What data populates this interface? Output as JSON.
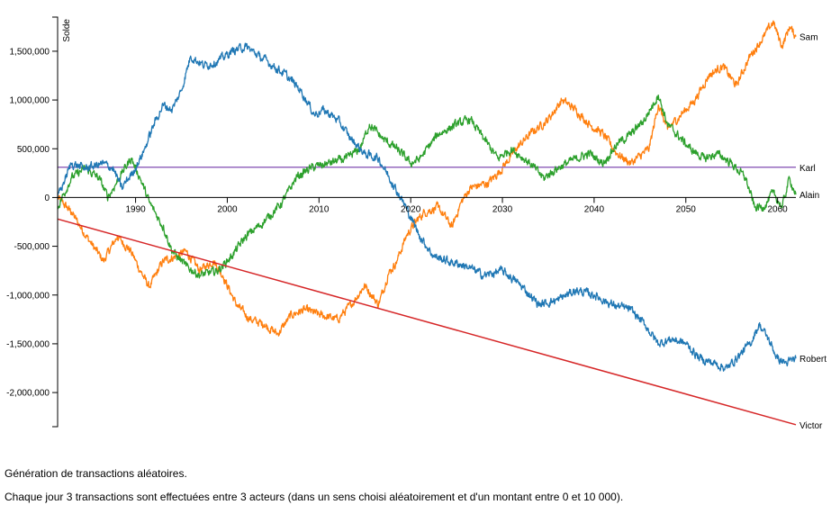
{
  "chart_data": {
    "type": "line",
    "ylabel": "Solde",
    "xlim": [
      1981.5,
      2062
    ],
    "ylim": [
      -2350000,
      1850000
    ],
    "x_ticks": [
      1990,
      2000,
      2010,
      2020,
      2030,
      2040,
      2050,
      2060
    ],
    "x_tick_labels": [
      "1990",
      "2000",
      "2010",
      "2020",
      "2030",
      "2040",
      "2050",
      "2060"
    ],
    "y_ticks": [
      1500000,
      1000000,
      500000,
      0,
      -500000,
      -1000000,
      -1500000,
      -2000000
    ],
    "y_tick_labels": [
      "1,500,000",
      "1,000,000",
      "500,000",
      "0",
      "-500,000",
      "-1,000,000",
      "-1,500,000",
      "-2,000,000"
    ],
    "grid": false,
    "legend": "none (series labelled at line ends)",
    "series": [
      {
        "name": "Sam",
        "color": "#ff7f0e",
        "noise": 70000,
        "points": [
          [
            1981.5,
            0
          ],
          [
            1983,
            -150000
          ],
          [
            1985,
            -450000
          ],
          [
            1986.5,
            -650000
          ],
          [
            1988,
            -400000
          ],
          [
            1989.5,
            -550000
          ],
          [
            1990.5,
            -750000
          ],
          [
            1991.5,
            -920000
          ],
          [
            1993,
            -650000
          ],
          [
            1994.5,
            -600000
          ],
          [
            1995.5,
            -550000
          ],
          [
            1997,
            -750000
          ],
          [
            1998.5,
            -650000
          ],
          [
            1999.5,
            -800000
          ],
          [
            2001,
            -1100000
          ],
          [
            2002.5,
            -1250000
          ],
          [
            2004,
            -1300000
          ],
          [
            2005.5,
            -1400000
          ],
          [
            2007,
            -1200000
          ],
          [
            2008.5,
            -1150000
          ],
          [
            2010,
            -1200000
          ],
          [
            2012,
            -1250000
          ],
          [
            2013.5,
            -1100000
          ],
          [
            2015,
            -900000
          ],
          [
            2016.5,
            -1100000
          ],
          [
            2017.5,
            -800000
          ],
          [
            2018.5,
            -650000
          ],
          [
            2019.5,
            -400000
          ],
          [
            2020.5,
            -250000
          ],
          [
            2021.5,
            -150000
          ],
          [
            2023,
            -100000
          ],
          [
            2024.5,
            -300000
          ],
          [
            2025.5,
            -50000
          ],
          [
            2026.5,
            100000
          ],
          [
            2028.5,
            150000
          ],
          [
            2030,
            300000
          ],
          [
            2031.5,
            500000
          ],
          [
            2033,
            650000
          ],
          [
            2035,
            800000
          ],
          [
            2036.5,
            1000000
          ],
          [
            2038,
            900000
          ],
          [
            2039.5,
            750000
          ],
          [
            2041,
            650000
          ],
          [
            2042.5,
            450000
          ],
          [
            2044,
            350000
          ],
          [
            2046,
            500000
          ],
          [
            2047,
            950000
          ],
          [
            2048,
            700000
          ],
          [
            2049.5,
            850000
          ],
          [
            2051,
            1000000
          ],
          [
            2052.5,
            1250000
          ],
          [
            2054,
            1350000
          ],
          [
            2055.5,
            1150000
          ],
          [
            2057,
            1450000
          ],
          [
            2058.5,
            1650000
          ],
          [
            2059.5,
            1800000
          ],
          [
            2060.5,
            1550000
          ],
          [
            2061.3,
            1750000
          ],
          [
            2062,
            1650000
          ]
        ]
      },
      {
        "name": "Karl",
        "color": "#9467bd",
        "noise": 0,
        "points": [
          [
            1981.5,
            310000
          ],
          [
            2062,
            310000
          ]
        ]
      },
      {
        "name": "Alain",
        "color": "#2ca02c",
        "noise": 70000,
        "points": [
          [
            1981.5,
            -100000
          ],
          [
            1983,
            200000
          ],
          [
            1984.5,
            300000
          ],
          [
            1986,
            200000
          ],
          [
            1987,
            0
          ],
          [
            1988.5,
            250000
          ],
          [
            1989.5,
            400000
          ],
          [
            1990.5,
            200000
          ],
          [
            1991.5,
            -50000
          ],
          [
            1993,
            -300000
          ],
          [
            1994,
            -550000
          ],
          [
            1995.5,
            -700000
          ],
          [
            1997,
            -800000
          ],
          [
            1999,
            -750000
          ],
          [
            2000.5,
            -600000
          ],
          [
            2002,
            -400000
          ],
          [
            2004,
            -250000
          ],
          [
            2006,
            -50000
          ],
          [
            2007.5,
            200000
          ],
          [
            2009,
            300000
          ],
          [
            2011,
            350000
          ],
          [
            2013,
            400000
          ],
          [
            2014.5,
            500000
          ],
          [
            2015.5,
            750000
          ],
          [
            2017,
            600000
          ],
          [
            2018.5,
            500000
          ],
          [
            2020,
            350000
          ],
          [
            2021,
            400000
          ],
          [
            2023,
            650000
          ],
          [
            2025,
            750000
          ],
          [
            2026.5,
            800000
          ],
          [
            2028,
            600000
          ],
          [
            2029.5,
            400000
          ],
          [
            2031,
            500000
          ],
          [
            2033,
            350000
          ],
          [
            2034.5,
            200000
          ],
          [
            2036,
            300000
          ],
          [
            2038,
            400000
          ],
          [
            2039.5,
            450000
          ],
          [
            2041,
            350000
          ],
          [
            2042.5,
            550000
          ],
          [
            2044,
            650000
          ],
          [
            2045.5,
            800000
          ],
          [
            2047,
            1050000
          ],
          [
            2048,
            750000
          ],
          [
            2049.5,
            600000
          ],
          [
            2050.5,
            500000
          ],
          [
            2052,
            400000
          ],
          [
            2053.5,
            450000
          ],
          [
            2055,
            350000
          ],
          [
            2056.5,
            200000
          ],
          [
            2057.5,
            -100000
          ],
          [
            2058.5,
            -100000
          ],
          [
            2059.5,
            50000
          ],
          [
            2060.5,
            -100000
          ],
          [
            2061.3,
            200000
          ],
          [
            2062,
            30000
          ]
        ]
      },
      {
        "name": "Robert",
        "color": "#1f77b4",
        "noise": 70000,
        "points": [
          [
            1981.5,
            0
          ],
          [
            1983,
            350000
          ],
          [
            1984.5,
            300000
          ],
          [
            1986.5,
            350000
          ],
          [
            1987.5,
            300000
          ],
          [
            1988.5,
            100000
          ],
          [
            1990,
            300000
          ],
          [
            1991,
            500000
          ],
          [
            1992,
            750000
          ],
          [
            1993,
            950000
          ],
          [
            1994,
            900000
          ],
          [
            1995,
            1100000
          ],
          [
            1996,
            1450000
          ],
          [
            1997.5,
            1350000
          ],
          [
            1999,
            1400000
          ],
          [
            2000.5,
            1500000
          ],
          [
            2002,
            1550000
          ],
          [
            2003.5,
            1450000
          ],
          [
            2005,
            1350000
          ],
          [
            2006.5,
            1250000
          ],
          [
            2008,
            1100000
          ],
          [
            2009.5,
            850000
          ],
          [
            2010.5,
            900000
          ],
          [
            2012,
            800000
          ],
          [
            2013.5,
            600000
          ],
          [
            2015,
            450000
          ],
          [
            2016.5,
            400000
          ],
          [
            2018,
            150000
          ],
          [
            2019.5,
            -100000
          ],
          [
            2021,
            -400000
          ],
          [
            2022.5,
            -600000
          ],
          [
            2024,
            -650000
          ],
          [
            2026,
            -700000
          ],
          [
            2028,
            -800000
          ],
          [
            2030,
            -750000
          ],
          [
            2032,
            -900000
          ],
          [
            2034,
            -1100000
          ],
          [
            2036,
            -1050000
          ],
          [
            2038,
            -950000
          ],
          [
            2040,
            -1000000
          ],
          [
            2042,
            -1100000
          ],
          [
            2044,
            -1150000
          ],
          [
            2045.5,
            -1300000
          ],
          [
            2047,
            -1500000
          ],
          [
            2048.5,
            -1450000
          ],
          [
            2050,
            -1500000
          ],
          [
            2051.5,
            -1650000
          ],
          [
            2053,
            -1700000
          ],
          [
            2054.5,
            -1750000
          ],
          [
            2056,
            -1600000
          ],
          [
            2057,
            -1500000
          ],
          [
            2058,
            -1300000
          ],
          [
            2059,
            -1450000
          ],
          [
            2060,
            -1650000
          ],
          [
            2061,
            -1700000
          ],
          [
            2062,
            -1650000
          ]
        ]
      },
      {
        "name": "Victor",
        "color": "#d62728",
        "noise": 0,
        "points": [
          [
            1981.5,
            -220000
          ],
          [
            2062,
            -2330000
          ]
        ]
      }
    ]
  },
  "captions": {
    "line1": "Génération de transactions aléatoires.",
    "line2": "Chaque jour 3 transactions sont effectuées entre 3 acteurs (dans un sens choisi aléatoirement et d'un montant entre 0 et 10 000)."
  }
}
